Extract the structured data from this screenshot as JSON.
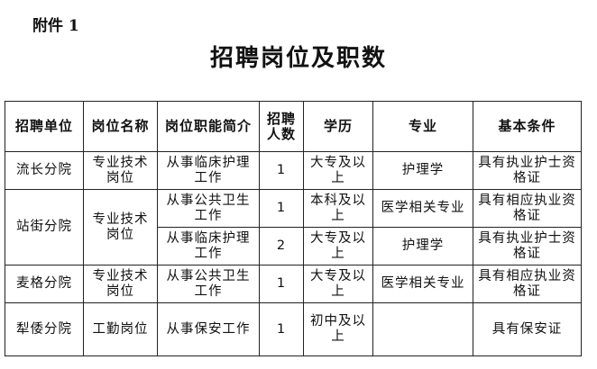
{
  "attachment": "附件 1",
  "title": "招聘岗位及职数",
  "headers": [
    "招聘单位",
    "岗位名称",
    "岗位职能简介",
    "招聘人数",
    "学历",
    "专业",
    "基本条件"
  ],
  "rows": [
    {
      "unit": "流长分院",
      "post": "专业技术岗位",
      "duty": "从事临床护理工作",
      "count": "1",
      "edu": "大专及以上",
      "major": "护理学",
      "cond": "具有执业护士资格证"
    },
    {
      "unit": "站街分院",
      "post": "专业技术岗位",
      "duty": "从事公共卫生工作",
      "count": "1",
      "edu": "本科及以上",
      "major": "医学相关专业",
      "cond": "具有相应执业资格证"
    },
    {
      "duty": "从事临床护理工作",
      "count": "2",
      "edu": "大专及以上",
      "major": "护理学",
      "cond": "具有执业护士资格证"
    },
    {
      "unit": "麦格分院",
      "post": "专业技术岗位",
      "duty": "从事公共卫生工作",
      "count": "1",
      "edu": "大专及以上",
      "major": "医学相关专业",
      "cond": "具有相应执业资格证"
    },
    {
      "unit": "犁倭分院",
      "post": "工勤岗位",
      "duty": "从事保安工作",
      "count": "1",
      "edu": "初中及以上",
      "major": "",
      "cond": "具有保安证"
    }
  ]
}
